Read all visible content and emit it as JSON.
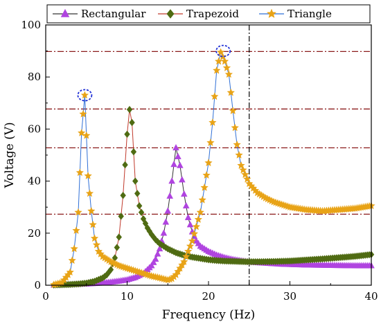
{
  "chart_data": {
    "type": "line",
    "xlabel": "Frequency (Hz)",
    "ylabel": "Voltage (V)",
    "xlim": [
      0,
      40
    ],
    "ylim": [
      0,
      100
    ],
    "xticks": [
      0,
      10,
      20,
      30,
      40
    ],
    "yticks": [
      0,
      20,
      40,
      60,
      80,
      100
    ],
    "x_tick_labels": [
      "0",
      "10",
      "20",
      "30",
      "40"
    ],
    "y_tick_labels": [
      "0",
      "20",
      "40",
      "60",
      "80",
      "100"
    ],
    "legend_position": "top",
    "reference_lines": {
      "horizontal_y": [
        89.8,
        67.7,
        52.8,
        27.3
      ],
      "vertical_x": [
        25
      ],
      "color": "#8b1a1a"
    },
    "peak_markers": [
      {
        "x": 4.8,
        "y": 73,
        "color": "#1f2fd6"
      },
      {
        "x": 21.8,
        "y": 90,
        "color": "#1f2fd6"
      }
    ],
    "series": [
      {
        "name": "Rectangular",
        "color": "#b044e0",
        "line_color": "#333333",
        "marker": "triangle",
        "points": [
          [
            1,
            0.1
          ],
          [
            2,
            0.2
          ],
          [
            3,
            0.3
          ],
          [
            4,
            0.4
          ],
          [
            5,
            0.5
          ],
          [
            6,
            0.7
          ],
          [
            7,
            0.9
          ],
          [
            8,
            1.2
          ],
          [
            9,
            1.6
          ],
          [
            10,
            2.1
          ],
          [
            11,
            3.0
          ],
          [
            12,
            4.5
          ],
          [
            13,
            7.5
          ],
          [
            13.5,
            10
          ],
          [
            14,
            14
          ],
          [
            14.5,
            20
          ],
          [
            15,
            28.5
          ],
          [
            15.5,
            40
          ],
          [
            16,
            52.8
          ],
          [
            16.5,
            46
          ],
          [
            17,
            35
          ],
          [
            17.5,
            26
          ],
          [
            18,
            20.5
          ],
          [
            18.5,
            17
          ],
          [
            19,
            15
          ],
          [
            19.5,
            14
          ],
          [
            20,
            13
          ],
          [
            21,
            11.6
          ],
          [
            22,
            10.6
          ],
          [
            23,
            9.9
          ],
          [
            24,
            9.4
          ],
          [
            25,
            9
          ],
          [
            26,
            8.7
          ],
          [
            27,
            8.5
          ],
          [
            28,
            8.3
          ],
          [
            29,
            8.1
          ],
          [
            30,
            8
          ],
          [
            32,
            7.8
          ],
          [
            34,
            7.7
          ],
          [
            36,
            7.6
          ],
          [
            38,
            7.5
          ],
          [
            40,
            7.5
          ]
        ]
      },
      {
        "name": "Trapezoid",
        "color": "#4f6b12",
        "line_color": "#c0392b",
        "marker": "diamond",
        "points": [
          [
            1,
            0.1
          ],
          [
            2,
            0.2
          ],
          [
            3,
            0.3
          ],
          [
            4,
            0.5
          ],
          [
            5,
            0.8
          ],
          [
            6,
            1.5
          ],
          [
            7,
            2.8
          ],
          [
            7.5,
            4
          ],
          [
            8,
            6
          ],
          [
            8.5,
            10.5
          ],
          [
            9,
            18.5
          ],
          [
            9.5,
            34.5
          ],
          [
            10,
            58
          ],
          [
            10.3,
            67.5
          ],
          [
            10.6,
            62.5
          ],
          [
            11,
            40
          ],
          [
            11.5,
            30.5
          ],
          [
            12,
            25.5
          ],
          [
            12.5,
            22
          ],
          [
            13,
            19.5
          ],
          [
            13.5,
            17.5
          ],
          [
            14,
            16
          ],
          [
            15,
            14
          ],
          [
            16,
            12.5
          ],
          [
            17,
            11.5
          ],
          [
            18,
            10.8
          ],
          [
            19,
            10.3
          ],
          [
            20,
            9.8
          ],
          [
            21,
            9.5
          ],
          [
            22,
            9.3
          ],
          [
            23,
            9.2
          ],
          [
            24,
            9.1
          ],
          [
            25,
            9
          ],
          [
            26,
            9
          ],
          [
            28,
            9.1
          ],
          [
            30,
            9.3
          ],
          [
            32,
            9.7
          ],
          [
            34,
            10.1
          ],
          [
            36,
            10.6
          ],
          [
            38,
            11.1
          ],
          [
            40,
            11.8
          ]
        ]
      },
      {
        "name": "Triangle",
        "color": "#e8a317",
        "line_color": "#2f6fd6",
        "marker": "star",
        "points": [
          [
            1,
            0.2
          ],
          [
            2,
            1
          ],
          [
            3,
            5
          ],
          [
            3.5,
            14
          ],
          [
            4,
            28
          ],
          [
            4.4,
            58.5
          ],
          [
            4.8,
            73
          ],
          [
            5.2,
            42
          ],
          [
            5.6,
            28.5
          ],
          [
            6,
            18
          ],
          [
            6.5,
            13
          ],
          [
            7,
            11
          ],
          [
            8,
            9
          ],
          [
            9,
            7.5
          ],
          [
            10,
            6.5
          ],
          [
            11,
            5.5
          ],
          [
            12,
            4.5
          ],
          [
            13,
            3.5
          ],
          [
            14,
            2.8
          ],
          [
            15,
            2
          ],
          [
            15.5,
            2.5
          ],
          [
            16,
            4
          ],
          [
            17,
            9
          ],
          [
            18,
            17
          ],
          [
            19,
            28
          ],
          [
            20,
            47
          ],
          [
            20.5,
            62.5
          ],
          [
            21,
            82.5
          ],
          [
            21.5,
            89.5
          ],
          [
            22,
            86
          ],
          [
            22.5,
            81
          ],
          [
            23,
            67
          ],
          [
            23.5,
            54
          ],
          [
            24,
            46
          ],
          [
            25,
            39
          ],
          [
            26,
            35.5
          ],
          [
            27,
            33.5
          ],
          [
            28,
            32
          ],
          [
            29,
            31
          ],
          [
            30,
            30
          ],
          [
            32,
            29
          ],
          [
            34,
            28.5
          ],
          [
            36,
            29
          ],
          [
            38,
            29.5
          ],
          [
            40,
            30.5
          ]
        ]
      }
    ]
  }
}
